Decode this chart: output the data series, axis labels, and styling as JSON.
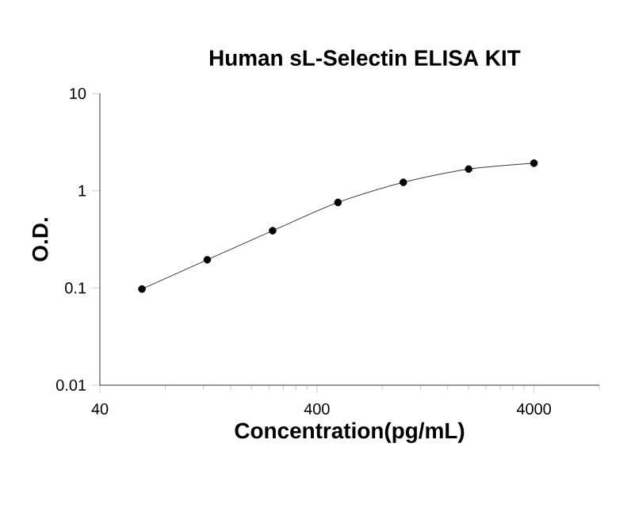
{
  "chart_data": {
    "type": "line",
    "title": "Human sL-Selectin ELISA KIT",
    "xlabel": "Concentration(pg/mL)",
    "ylabel": "O.D.",
    "x": [
      62.5,
      125,
      250,
      500,
      1000,
      2000,
      4000
    ],
    "series": [
      {
        "color": "#000000",
        "values": [
          0.0975,
          0.195,
          0.388,
          0.758,
          1.22,
          1.67,
          1.92
        ]
      }
    ],
    "log": "xy",
    "marker": "circle",
    "line_style": "solid",
    "xlim": [
      40,
      8000
    ],
    "ylim": [
      0.01,
      10
    ],
    "xticks": [
      40,
      {
        "value": 80,
        "label": null
      },
      {
        "value": 120,
        "label": null
      },
      {
        "value": 160,
        "label": null
      },
      {
        "value": 200,
        "label": null
      },
      {
        "value": 240,
        "label": null
      },
      {
        "value": 280,
        "label": null
      },
      {
        "value": 320,
        "label": null
      },
      {
        "value": 360,
        "label": null
      },
      400,
      {
        "value": 800,
        "label": null
      },
      {
        "value": 1200,
        "label": null
      },
      {
        "value": 1600,
        "label": null
      },
      {
        "value": 2000,
        "label": null
      },
      {
        "value": 2400,
        "label": null
      },
      {
        "value": 2800,
        "label": null
      },
      {
        "value": 3200,
        "label": null
      },
      {
        "value": 3600,
        "label": null
      },
      4000,
      {
        "value": 8000,
        "label": null
      }
    ],
    "yticks": [
      0.01,
      0.1,
      1,
      10
    ]
  }
}
